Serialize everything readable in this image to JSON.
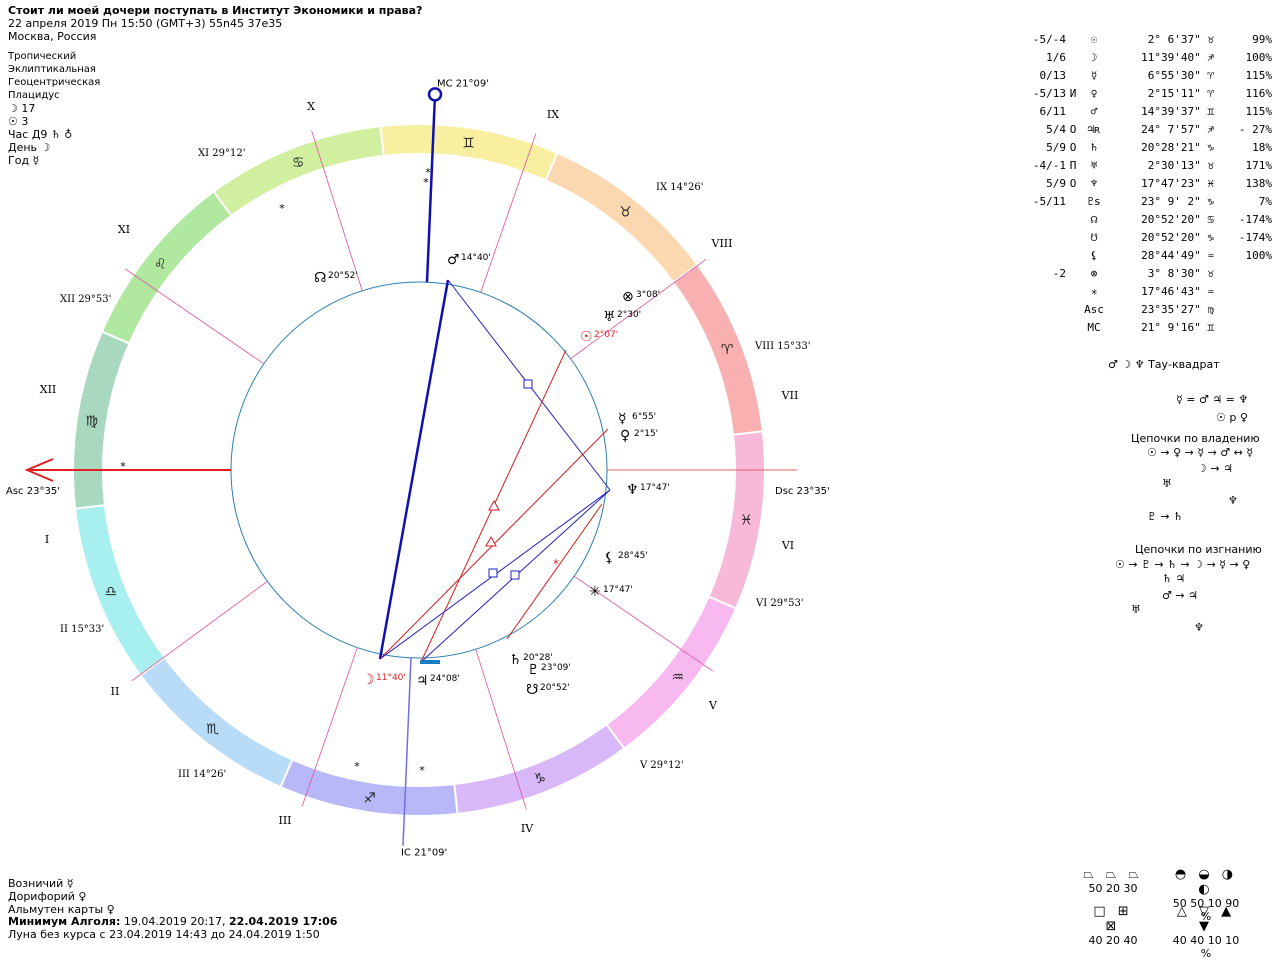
{
  "header": {
    "title": "Стоит ли моей дочери поступать в Институт Экономики и права?",
    "datetime": "22 апреля 2019  Пн  15:50 (GMT+3) 55n45  37e35",
    "place": "Москва, Россия"
  },
  "settings": {
    "zodiac": "Тропический",
    "coords": "Эклиптикальная",
    "center": "Геоцентрическая",
    "houses": "Плацидус",
    "moon_line": "☽  17",
    "sun_line": "☉  3",
    "hour_line": "Час Д9 ♄ ♁",
    "day_line": "День ☽",
    "year_line": "Год ☿"
  },
  "chart": {
    "mc_label": "MC",
    "mc_deg": "21°09'",
    "ic_label": "IC",
    "ic_deg": "21°09'",
    "asc_label": "Asc",
    "asc_deg": "23°35'",
    "dsc_label": "Dsc",
    "dsc_deg": "23°35'",
    "houses": [
      {
        "num": "X"
      },
      {
        "num": "IX"
      },
      {
        "num": "VIII"
      },
      {
        "num": "VII"
      },
      {
        "num": "VI"
      },
      {
        "num": "V"
      },
      {
        "num": "IV"
      },
      {
        "num": "III"
      },
      {
        "num": "II"
      },
      {
        "num": "I"
      },
      {
        "num": "XII"
      },
      {
        "num": "XI"
      }
    ],
    "cusps": [
      {
        "label": "XI",
        "deg": "29°12'"
      },
      {
        "label": "XII",
        "deg": "29°53'"
      },
      {
        "label": "II",
        "deg": "15°33'"
      },
      {
        "label": "III",
        "deg": "14°26'"
      },
      {
        "label": "V",
        "deg": "29°12'"
      },
      {
        "label": "VI",
        "deg": "29°53'"
      },
      {
        "label": "VIII",
        "deg": "15°33'"
      },
      {
        "label": "IX",
        "deg": "14°26'"
      }
    ],
    "planets": [
      {
        "sym": "♂",
        "deg": "14°40'"
      },
      {
        "sym": "☊",
        "deg": "20°52'"
      },
      {
        "sym": "⊗",
        "deg": "3°08'"
      },
      {
        "sym": "♅",
        "deg": "2°30'"
      },
      {
        "sym": "☉",
        "deg": "2°07'"
      },
      {
        "sym": "☿",
        "deg": "6°55'"
      },
      {
        "sym": "♀",
        "deg": "2°15'"
      },
      {
        "sym": "♆",
        "deg": "17°47'"
      },
      {
        "sym": "⚸",
        "deg": "28°45'"
      },
      {
        "sym": "✳",
        "deg": "17°47'"
      },
      {
        "sym": "♄",
        "deg": "20°28'"
      },
      {
        "sym": "♇",
        "deg": "23°09'"
      },
      {
        "sym": "☋",
        "deg": "20°52'"
      },
      {
        "sym": "♃",
        "deg": "24°08'"
      },
      {
        "sym": "☽",
        "deg": "11°40'"
      }
    ],
    "colors": {
      "mc_line": "#1010b0",
      "asc_line": "#e02020",
      "inner_circle": "#2a7fb0",
      "house_line": "#e0509a",
      "trine": "#d02020",
      "square": "#2020c0"
    }
  },
  "aspect_table": [
    {
      "asp": "-5/-4",
      "mod": "",
      "sym": "☉",
      "pos": "2° 6'37\" ♉",
      "pct": "99%"
    },
    {
      "asp": "1/6",
      "mod": "",
      "sym": "☽",
      "pos": "11°39'40\" ♐",
      "pct": "100%"
    },
    {
      "asp": "0/13",
      "mod": "",
      "sym": "☿",
      "pos": "6°55'30\" ♈",
      "pct": "115%"
    },
    {
      "asp": "-5/13",
      "mod": "И",
      "sym": "♀",
      "pos": "2°15'11\" ♈",
      "pct": "116%"
    },
    {
      "asp": "6/11",
      "mod": "",
      "sym": "♂",
      "pos": "14°39'37\" ♊",
      "pct": "115%"
    },
    {
      "asp": "5/4",
      "mod": "О",
      "sym": "♃ʀ",
      "pos": "24° 7'57\" ♐",
      "pct": "- 27%"
    },
    {
      "asp": "5/9",
      "mod": "О",
      "sym": "♄",
      "pos": "20°28'21\" ♑",
      "pct": "18%"
    },
    {
      "asp": "-4/-1",
      "mod": "П",
      "sym": "♅",
      "pos": "2°30'13\" ♉",
      "pct": "171%"
    },
    {
      "asp": "5/9",
      "mod": "О",
      "sym": "♆",
      "pos": "17°47'23\" ♓",
      "pct": "138%"
    },
    {
      "asp": "-5/11",
      "mod": "",
      "sym": "♇ѕ",
      "pos": "23° 9' 2\" ♑",
      "pct": "7%"
    },
    {
      "asp": "",
      "mod": "",
      "sym": "☊",
      "pos": "20°52'20\" ♋",
      "pct": "-174%"
    },
    {
      "asp": "",
      "mod": "",
      "sym": "☋",
      "pos": "20°52'20\" ♑",
      "pct": "-174%"
    },
    {
      "asp": "",
      "mod": "",
      "sym": "⚸",
      "pos": "28°44'49\" ♒",
      "pct": "100%"
    },
    {
      "asp": "-2",
      "mod": "",
      "sym": "⊗",
      "pos": "3° 8'30\" ♉",
      "pct": ""
    },
    {
      "asp": "",
      "mod": "",
      "sym": "✳",
      "pos": "17°46'43\" ♒",
      "pct": ""
    },
    {
      "asp": "",
      "mod": "",
      "sym": "Asc",
      "pos": "23°35'27\" ♍",
      "pct": ""
    },
    {
      "asp": "",
      "mod": "",
      "sym": "MC",
      "pos": "21° 9'16\" ♊",
      "pct": ""
    }
  ],
  "right_panel": {
    "tau_square": "♂ ☽ ♆  Тау-квадрат",
    "eq1": "☿ = ♂ ♃ = ♆",
    "eq2": "☉ p ♀",
    "chains_own_title": "Цепочки по владению",
    "chains_own_1": "☉ → ♀ → ☿ → ♂ ↔ ☿",
    "chains_own_2": "☽ → ♃",
    "chains_own_3": "♅",
    "chains_own_4": "♆",
    "chains_own_5": "♇ → ♄",
    "chains_exile_title": "Цепочки по изгнанию",
    "chains_exile_1": "☉ → ♇ → ♄ → ☽ → ☿ → ♀",
    "chains_exile_2": "♄ ♃",
    "chains_exile_3": "♂ → ♃",
    "chains_exile_4": "♅",
    "chains_exile_5": "♆"
  },
  "footer": {
    "charioteer": "Возничий ☿",
    "doryphory": "Дорифорий ♀",
    "almuten": "Альмутен карты ♀",
    "algol_label": "Минимум Алголя:",
    "algol_1": "19.04.2019 20:17,",
    "algol_2": "22.04.2019 17:06",
    "moon_void": "Луна без курса с 23.04.2019 14:43 до 24.04.2019  1:50"
  },
  "legend": {
    "row1_a": "50 20 30",
    "row1_b": "50 50 10 90 %",
    "row2_a": "40 20 40",
    "row2_b": "40 40 10 10 %"
  }
}
